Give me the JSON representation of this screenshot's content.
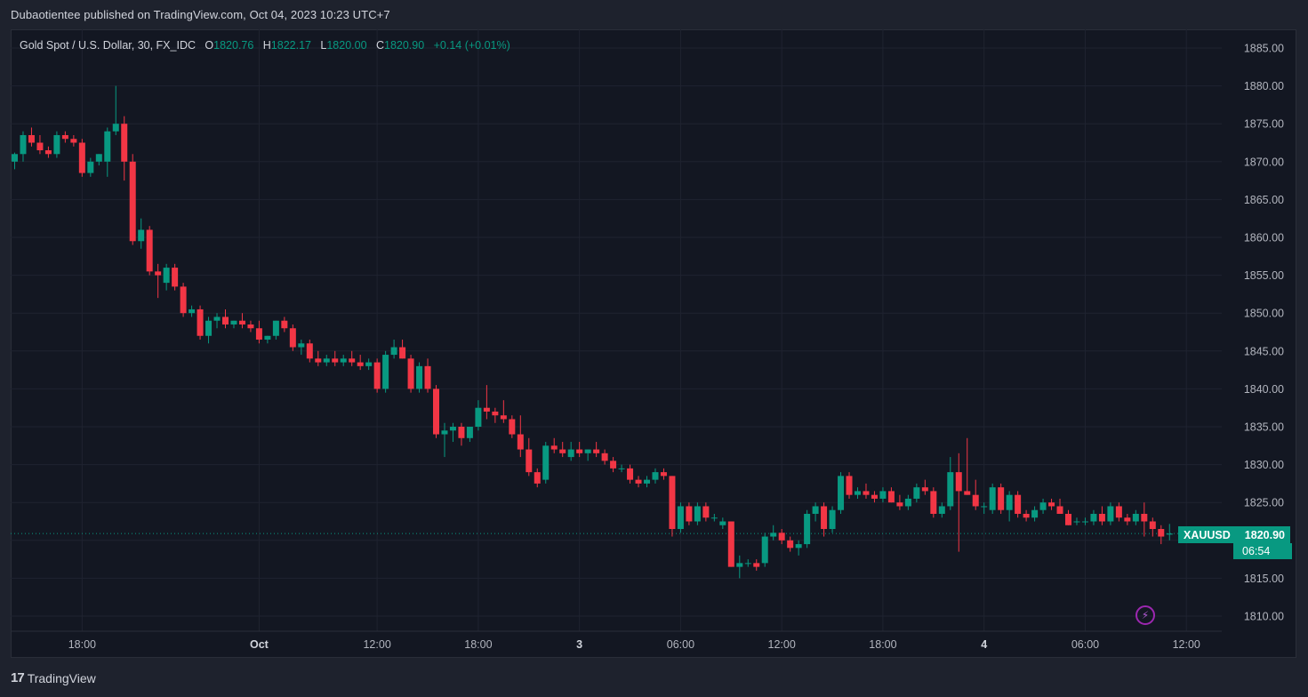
{
  "header": {
    "published_text": "Dubaotientee published on TradingView.com, Oct 04, 2023 10:23 UTC+7"
  },
  "legend": {
    "symbol_desc": "Gold Spot / U.S. Dollar, 30, FX_IDC",
    "open_label": "O",
    "open": "1820.76",
    "high_label": "H",
    "high": "1822.17",
    "low_label": "L",
    "low": "1820.00",
    "close_label": "C",
    "close": "1820.90",
    "change": "+0.14 (+0.01%)"
  },
  "price_tag": {
    "symbol": "XAUUSD",
    "price": "1820.90",
    "countdown": "06:54"
  },
  "footer": {
    "brand_logo": "17",
    "brand": "TradingView"
  },
  "colors": {
    "up": "#089981",
    "down": "#f23645",
    "background": "#131722",
    "grid": "#1f2330",
    "text": "#b2b5be"
  },
  "icons": {
    "alert": "flash-icon"
  },
  "chart_data": {
    "type": "candlestick",
    "ylim": [
      1807.5,
      1888
    ],
    "y_ticks": [
      "1885.00",
      "1880.00",
      "1875.00",
      "1870.00",
      "1865.00",
      "1860.00",
      "1855.00",
      "1850.00",
      "1845.00",
      "1840.00",
      "1835.00",
      "1830.00",
      "1825.00",
      "1820.00",
      "1815.00",
      "1810.00"
    ],
    "x_ticks": [
      {
        "label": "18:00",
        "index": 8,
        "bold": false
      },
      {
        "label": "Oct",
        "index": 29,
        "bold": true
      },
      {
        "label": "12:00",
        "index": 43,
        "bold": false
      },
      {
        "label": "18:00",
        "index": 55,
        "bold": false
      },
      {
        "label": "3",
        "index": 67,
        "bold": true
      },
      {
        "label": "06:00",
        "index": 79,
        "bold": false
      },
      {
        "label": "12:00",
        "index": 91,
        "bold": false
      },
      {
        "label": "18:00",
        "index": 103,
        "bold": false
      },
      {
        "label": "4",
        "index": 115,
        "bold": true
      },
      {
        "label": "06:00",
        "index": 127,
        "bold": false
      },
      {
        "label": "12:00",
        "index": 139,
        "bold": false
      }
    ],
    "last_price": 1820.9,
    "candles": [
      [
        1870,
        1871.2,
        1869,
        1871
      ],
      [
        1871,
        1874,
        1870,
        1873.5
      ],
      [
        1873.5,
        1874.5,
        1872,
        1872.5
      ],
      [
        1872.5,
        1873.5,
        1871,
        1871.5
      ],
      [
        1871.5,
        1872,
        1870.5,
        1871
      ],
      [
        1871,
        1874,
        1870.5,
        1873.5
      ],
      [
        1873.5,
        1874,
        1872.5,
        1873
      ],
      [
        1873,
        1873.5,
        1872,
        1872.5
      ],
      [
        1872.5,
        1873,
        1868,
        1868.5
      ],
      [
        1868.5,
        1870.5,
        1868,
        1870
      ],
      [
        1870,
        1871,
        1869.5,
        1871
      ],
      [
        1870,
        1874.5,
        1868,
        1874
      ],
      [
        1874,
        1880,
        1873.5,
        1875
      ],
      [
        1875,
        1876,
        1867.5,
        1870
      ],
      [
        1870,
        1871,
        1859,
        1859.5
      ],
      [
        1859.5,
        1862.5,
        1858.5,
        1861
      ],
      [
        1861,
        1861.5,
        1855,
        1855.5
      ],
      [
        1855.5,
        1856.5,
        1852,
        1855
      ],
      [
        1854,
        1856.5,
        1853,
        1856
      ],
      [
        1856,
        1856.5,
        1853,
        1853.5
      ],
      [
        1853.5,
        1854,
        1849.5,
        1850
      ],
      [
        1850,
        1851,
        1849.5,
        1850.5
      ],
      [
        1850.5,
        1851,
        1846.5,
        1847
      ],
      [
        1847,
        1849.5,
        1846,
        1849
      ],
      [
        1849,
        1850,
        1848,
        1849.5
      ],
      [
        1849.5,
        1850.5,
        1848,
        1848.5
      ],
      [
        1848.5,
        1849,
        1848,
        1849
      ],
      [
        1849,
        1850,
        1848,
        1848.5
      ],
      [
        1848.5,
        1849,
        1847.5,
        1848
      ],
      [
        1848,
        1849,
        1846,
        1846.5
      ],
      [
        1846.5,
        1847,
        1846,
        1847
      ],
      [
        1847,
        1849,
        1846.5,
        1849
      ],
      [
        1849,
        1849.5,
        1847.5,
        1848
      ],
      [
        1848,
        1848.5,
        1845,
        1845.5
      ],
      [
        1845.5,
        1846.5,
        1844.5,
        1846
      ],
      [
        1846,
        1846.5,
        1843.5,
        1844
      ],
      [
        1844,
        1845,
        1843,
        1843.5
      ],
      [
        1843.5,
        1844.5,
        1843,
        1844
      ],
      [
        1844,
        1845,
        1843,
        1843.5
      ],
      [
        1843.5,
        1844.5,
        1843,
        1844
      ],
      [
        1844,
        1845,
        1843,
        1843.5
      ],
      [
        1843.5,
        1844.5,
        1842.5,
        1843
      ],
      [
        1843,
        1844,
        1842.5,
        1843.5
      ],
      [
        1843.5,
        1844,
        1839.5,
        1840
      ],
      [
        1840,
        1845,
        1839.5,
        1844.5
      ],
      [
        1844.5,
        1846.5,
        1844,
        1845.5
      ],
      [
        1845.5,
        1846.5,
        1844,
        1844
      ],
      [
        1844,
        1844.5,
        1839.5,
        1840
      ],
      [
        1840,
        1843.5,
        1839.5,
        1843
      ],
      [
        1843,
        1844,
        1839.5,
        1840
      ],
      [
        1840,
        1840.5,
        1833.5,
        1834
      ],
      [
        1834,
        1835.5,
        1831,
        1834.5
      ],
      [
        1834.5,
        1835.5,
        1833,
        1835
      ],
      [
        1835,
        1835.5,
        1832.5,
        1833.5
      ],
      [
        1833.5,
        1835,
        1833,
        1835
      ],
      [
        1835,
        1838.5,
        1834.5,
        1837.5
      ],
      [
        1837.5,
        1840.5,
        1836,
        1837
      ],
      [
        1837,
        1837.5,
        1835.5,
        1836.5
      ],
      [
        1836.5,
        1838.5,
        1835.5,
        1836
      ],
      [
        1836,
        1836.5,
        1833.5,
        1834
      ],
      [
        1834,
        1836.5,
        1831,
        1832
      ],
      [
        1832,
        1833.5,
        1828.5,
        1829
      ],
      [
        1829,
        1829.5,
        1827,
        1827.5
      ],
      [
        1828,
        1833,
        1827.5,
        1832.5
      ],
      [
        1832.5,
        1833.5,
        1831.5,
        1832
      ],
      [
        1832,
        1833,
        1831,
        1831.5
      ],
      [
        1831,
        1833,
        1830.5,
        1832
      ],
      [
        1832,
        1833,
        1831,
        1831.5
      ],
      [
        1831.5,
        1832,
        1830.5,
        1832
      ],
      [
        1832,
        1833,
        1831,
        1831.5
      ],
      [
        1831.5,
        1832,
        1830,
        1830.5
      ],
      [
        1830.5,
        1831,
        1829,
        1829.5
      ],
      [
        1829.5,
        1830,
        1829,
        1829.5
      ],
      [
        1829.5,
        1830,
        1827.5,
        1828
      ],
      [
        1828,
        1828.5,
        1827,
        1827.5
      ],
      [
        1827.5,
        1828.5,
        1827,
        1828
      ],
      [
        1828,
        1829.5,
        1827.5,
        1829
      ],
      [
        1829,
        1829.5,
        1828,
        1828.5
      ],
      [
        1828.5,
        1828.5,
        1820.5,
        1821.5
      ],
      [
        1821.5,
        1825,
        1821,
        1824.5
      ],
      [
        1824.5,
        1825,
        1822,
        1822.5
      ],
      [
        1822.5,
        1825,
        1822,
        1824.5
      ],
      [
        1824.5,
        1825,
        1822.5,
        1823
      ],
      [
        1823,
        1823.5,
        1822.5,
        1823
      ],
      [
        1822,
        1823,
        1821.5,
        1822.5
      ],
      [
        1822.5,
        1822.5,
        1816.5,
        1816.5
      ],
      [
        1816.5,
        1818,
        1815,
        1817
      ],
      [
        1817,
        1817.5,
        1816.5,
        1817
      ],
      [
        1817,
        1817.5,
        1816,
        1816.5
      ],
      [
        1817,
        1821,
        1816.5,
        1820.5
      ],
      [
        1820.5,
        1822,
        1820,
        1821
      ],
      [
        1821,
        1821.5,
        1819.5,
        1820
      ],
      [
        1820,
        1820.5,
        1818.5,
        1819
      ],
      [
        1819,
        1820,
        1818,
        1819.5
      ],
      [
        1819.5,
        1824,
        1819,
        1823.5
      ],
      [
        1823.5,
        1825,
        1822.5,
        1824.5
      ],
      [
        1824.5,
        1825,
        1820.5,
        1821.5
      ],
      [
        1821.5,
        1824.5,
        1821,
        1824
      ],
      [
        1824,
        1829,
        1823.5,
        1828.5
      ],
      [
        1828.5,
        1829,
        1825.5,
        1826
      ],
      [
        1826,
        1827,
        1825.5,
        1826.5
      ],
      [
        1826.5,
        1827.5,
        1825.5,
        1826
      ],
      [
        1826,
        1826.5,
        1825,
        1825.5
      ],
      [
        1825.5,
        1827,
        1825,
        1826.5
      ],
      [
        1826.5,
        1827,
        1825,
        1825
      ],
      [
        1825,
        1826,
        1824,
        1824.5
      ],
      [
        1824.5,
        1826,
        1824,
        1825.5
      ],
      [
        1825.5,
        1827.5,
        1825,
        1827
      ],
      [
        1827,
        1828,
        1826,
        1826.5
      ],
      [
        1826.5,
        1827,
        1823,
        1823.5
      ],
      [
        1823.5,
        1825,
        1823,
        1824.5
      ],
      [
        1824.5,
        1831,
        1824,
        1829
      ],
      [
        1829,
        1831.5,
        1818.5,
        1826.5
      ],
      [
        1826.5,
        1833.5,
        1826,
        1826
      ],
      [
        1826,
        1828,
        1824,
        1824.5
      ],
      [
        1824.5,
        1825,
        1823.5,
        1824.5
      ],
      [
        1824,
        1827.5,
        1823.5,
        1827
      ],
      [
        1827,
        1827.5,
        1823.5,
        1824
      ],
      [
        1824,
        1826.5,
        1822.5,
        1826
      ],
      [
        1826,
        1826.5,
        1823,
        1823.5
      ],
      [
        1823.5,
        1824,
        1822.5,
        1823
      ],
      [
        1823,
        1824.5,
        1822.5,
        1824
      ],
      [
        1824,
        1825.5,
        1823.5,
        1825
      ],
      [
        1825,
        1825.5,
        1824,
        1824.5
      ],
      [
        1824.5,
        1825.5,
        1823.5,
        1823.5
      ],
      [
        1823.5,
        1824,
        1822,
        1822
      ],
      [
        1822.5,
        1823,
        1822,
        1822.5
      ],
      [
        1822.5,
        1823,
        1822,
        1822.5
      ],
      [
        1822.5,
        1824,
        1822,
        1823.5
      ],
      [
        1823.5,
        1824.5,
        1822,
        1822.5
      ],
      [
        1822.5,
        1825,
        1822,
        1824.5
      ],
      [
        1824.5,
        1825,
        1822.5,
        1823
      ],
      [
        1823,
        1823.5,
        1822,
        1822.5
      ],
      [
        1822.5,
        1824,
        1822,
        1823.5
      ],
      [
        1823.5,
        1825,
        1820.5,
        1822.5
      ],
      [
        1822.5,
        1823,
        1820.5,
        1821.5
      ],
      [
        1821.5,
        1822,
        1819.5,
        1820.5
      ],
      [
        1820.76,
        1822.17,
        1820,
        1820.9
      ]
    ]
  }
}
